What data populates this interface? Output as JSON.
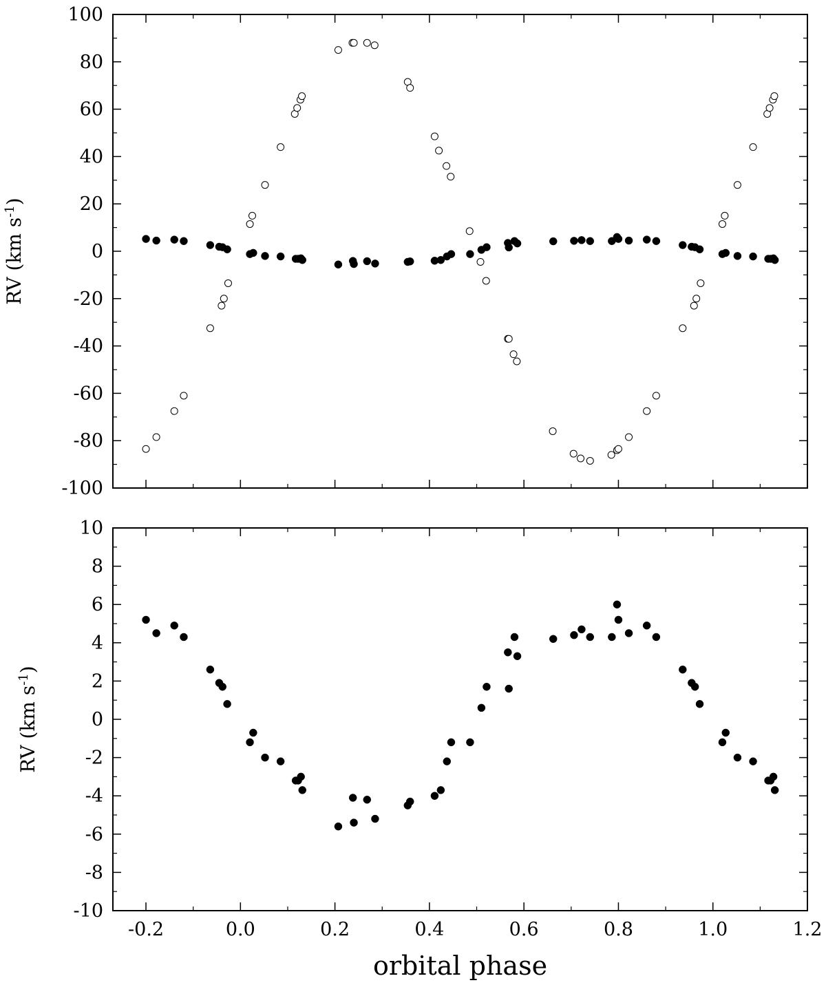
{
  "chart_data": [
    {
      "type": "scatter",
      "xlabel": "",
      "ylabel": "RV (km s-1)",
      "ylabel_parts": {
        "main": "RV (km s",
        "sup": "-1",
        "close": ")"
      },
      "xlim": [
        -0.27,
        1.2
      ],
      "ylim": [
        -100,
        100
      ],
      "yticks": [
        -100,
        -80,
        -60,
        -40,
        -20,
        0,
        20,
        40,
        60,
        80,
        100
      ],
      "ytick_labels": [
        "-100",
        "-80",
        "-60",
        "-40",
        "-20",
        "0",
        "20",
        "40",
        "60",
        "80",
        "100"
      ],
      "xticks": [
        -0.2,
        0.0,
        0.2,
        0.4,
        0.6,
        0.8,
        1.0,
        1.2
      ],
      "grid": false,
      "series": [
        {
          "marker": "open-circle",
          "points": [
            [
              -0.2,
              -83.5
            ],
            [
              -0.178,
              -78.5
            ],
            [
              -0.14,
              -67.5
            ],
            [
              -0.12,
              -61
            ],
            [
              -0.064,
              -32.5
            ],
            [
              -0.04,
              -23
            ],
            [
              -0.035,
              -20
            ],
            [
              -0.026,
              -13.5
            ],
            [
              0.02,
              11.5
            ],
            [
              0.025,
              15
            ],
            [
              0.052,
              28
            ],
            [
              0.085,
              44
            ],
            [
              0.115,
              58
            ],
            [
              0.12,
              60.5
            ],
            [
              0.127,
              64
            ],
            [
              0.13,
              65.5
            ],
            [
              0.207,
              85
            ],
            [
              0.237,
              88
            ],
            [
              0.24,
              88
            ],
            [
              0.268,
              88
            ],
            [
              0.284,
              87
            ],
            [
              0.354,
              71.5
            ],
            [
              0.359,
              69
            ],
            [
              0.411,
              48.5
            ],
            [
              0.42,
              42.5
            ],
            [
              0.436,
              36
            ],
            [
              0.445,
              31.5
            ],
            [
              0.485,
              8.5
            ],
            [
              0.508,
              -4.5
            ],
            [
              0.52,
              -12.5
            ],
            [
              0.566,
              -37
            ],
            [
              0.568,
              -37
            ],
            [
              0.578,
              -43.5
            ],
            [
              0.585,
              -46.5
            ],
            [
              0.661,
              -76
            ],
            [
              0.705,
              -85.5
            ],
            [
              0.72,
              -87.5
            ],
            [
              0.74,
              -88.5
            ],
            [
              0.785,
              -86
            ],
            [
              0.797,
              -84
            ],
            [
              0.8,
              -83.5
            ],
            [
              0.822,
              -78.5
            ],
            [
              0.86,
              -67.5
            ],
            [
              0.88,
              -61
            ],
            [
              0.936,
              -32.5
            ],
            [
              0.96,
              -23
            ],
            [
              0.965,
              -20
            ],
            [
              0.974,
              -13.5
            ],
            [
              1.02,
              11.5
            ],
            [
              1.025,
              15
            ],
            [
              1.052,
              28
            ],
            [
              1.085,
              44
            ],
            [
              1.115,
              58
            ],
            [
              1.12,
              60.5
            ],
            [
              1.127,
              64
            ],
            [
              1.13,
              65.5
            ]
          ]
        },
        {
          "marker": "filled-circle",
          "points": [
            [
              -0.2,
              5.2
            ],
            [
              -0.178,
              4.5
            ],
            [
              -0.14,
              4.9
            ],
            [
              -0.12,
              4.3
            ],
            [
              -0.064,
              2.6
            ],
            [
              -0.045,
              1.9
            ],
            [
              -0.038,
              1.7
            ],
            [
              -0.028,
              0.8
            ],
            [
              0.02,
              -1.2
            ],
            [
              0.027,
              -0.7
            ],
            [
              0.052,
              -2.0
            ],
            [
              0.085,
              -2.2
            ],
            [
              0.117,
              -3.2
            ],
            [
              0.122,
              -3.2
            ],
            [
              0.128,
              -3.0
            ],
            [
              0.131,
              -3.7
            ],
            [
              0.207,
              -5.6
            ],
            [
              0.238,
              -4.1
            ],
            [
              0.24,
              -5.4
            ],
            [
              0.268,
              -4.2
            ],
            [
              0.285,
              -5.2
            ],
            [
              0.354,
              -4.5
            ],
            [
              0.359,
              -4.3
            ],
            [
              0.411,
              -4.0
            ],
            [
              0.424,
              -3.7
            ],
            [
              0.437,
              -2.2
            ],
            [
              0.446,
              -1.2
            ],
            [
              0.486,
              -1.2
            ],
            [
              0.51,
              0.6
            ],
            [
              0.521,
              1.7
            ],
            [
              0.566,
              3.5
            ],
            [
              0.568,
              1.6
            ],
            [
              0.58,
              4.3
            ],
            [
              0.586,
              3.3
            ],
            [
              0.662,
              4.2
            ],
            [
              0.706,
              4.4
            ],
            [
              0.722,
              4.7
            ],
            [
              0.74,
              4.3
            ],
            [
              0.786,
              4.3
            ],
            [
              0.797,
              6.0
            ],
            [
              0.8,
              5.2
            ],
            [
              0.822,
              4.5
            ],
            [
              0.86,
              4.9
            ],
            [
              0.88,
              4.3
            ],
            [
              0.936,
              2.6
            ],
            [
              0.955,
              1.9
            ],
            [
              0.962,
              1.7
            ],
            [
              0.972,
              0.8
            ],
            [
              1.02,
              -1.2
            ],
            [
              1.027,
              -0.7
            ],
            [
              1.052,
              -2.0
            ],
            [
              1.085,
              -2.2
            ],
            [
              1.117,
              -3.2
            ],
            [
              1.122,
              -3.2
            ],
            [
              1.128,
              -3.0
            ],
            [
              1.131,
              -3.7
            ]
          ]
        }
      ]
    },
    {
      "type": "scatter",
      "xlabel": "orbital phase",
      "ylabel": "RV (km s-1)",
      "ylabel_parts": {
        "main": "RV (km s",
        "sup": "-1",
        "close": ")"
      },
      "xlim": [
        -0.27,
        1.2
      ],
      "ylim": [
        -10,
        10
      ],
      "yticks": [
        -10,
        -8,
        -6,
        -4,
        -2,
        0,
        2,
        4,
        6,
        8,
        10
      ],
      "ytick_labels": [
        "-10",
        "-8",
        "-6",
        "-4",
        "-2",
        "0",
        "2",
        "4",
        "6",
        "8",
        "10"
      ],
      "xticks": [
        -0.2,
        0.0,
        0.2,
        0.4,
        0.6,
        0.8,
        1.0,
        1.2
      ],
      "xtick_labels": [
        "-0.2",
        "0.0",
        "0.2",
        "0.4",
        "0.6",
        "0.8",
        "1.0",
        "1.2"
      ],
      "grid": false,
      "series": [
        {
          "marker": "filled-circle",
          "points": [
            [
              -0.2,
              5.2
            ],
            [
              -0.178,
              4.5
            ],
            [
              -0.14,
              4.9
            ],
            [
              -0.12,
              4.3
            ],
            [
              -0.064,
              2.6
            ],
            [
              -0.045,
              1.9
            ],
            [
              -0.038,
              1.7
            ],
            [
              -0.028,
              0.8
            ],
            [
              0.02,
              -1.2
            ],
            [
              0.027,
              -0.7
            ],
            [
              0.052,
              -2.0
            ],
            [
              0.085,
              -2.2
            ],
            [
              0.117,
              -3.2
            ],
            [
              0.122,
              -3.2
            ],
            [
              0.128,
              -3.0
            ],
            [
              0.131,
              -3.7
            ],
            [
              0.207,
              -5.6
            ],
            [
              0.238,
              -4.1
            ],
            [
              0.24,
              -5.4
            ],
            [
              0.268,
              -4.2
            ],
            [
              0.285,
              -5.2
            ],
            [
              0.354,
              -4.5
            ],
            [
              0.359,
              -4.3
            ],
            [
              0.411,
              -4.0
            ],
            [
              0.424,
              -3.7
            ],
            [
              0.437,
              -2.2
            ],
            [
              0.446,
              -1.2
            ],
            [
              0.486,
              -1.2
            ],
            [
              0.51,
              0.6
            ],
            [
              0.521,
              1.7
            ],
            [
              0.566,
              3.5
            ],
            [
              0.568,
              1.6
            ],
            [
              0.58,
              4.3
            ],
            [
              0.586,
              3.3
            ],
            [
              0.662,
              4.2
            ],
            [
              0.706,
              4.4
            ],
            [
              0.722,
              4.7
            ],
            [
              0.74,
              4.3
            ],
            [
              0.786,
              4.3
            ],
            [
              0.797,
              6.0
            ],
            [
              0.8,
              5.2
            ],
            [
              0.822,
              4.5
            ],
            [
              0.86,
              4.9
            ],
            [
              0.88,
              4.3
            ],
            [
              0.936,
              2.6
            ],
            [
              0.955,
              1.9
            ],
            [
              0.962,
              1.7
            ],
            [
              0.972,
              0.8
            ],
            [
              1.02,
              -1.2
            ],
            [
              1.027,
              -0.7
            ],
            [
              1.052,
              -2.0
            ],
            [
              1.085,
              -2.2
            ],
            [
              1.117,
              -3.2
            ],
            [
              1.122,
              -3.2
            ],
            [
              1.128,
              -3.0
            ],
            [
              1.131,
              -3.7
            ]
          ]
        }
      ]
    }
  ]
}
